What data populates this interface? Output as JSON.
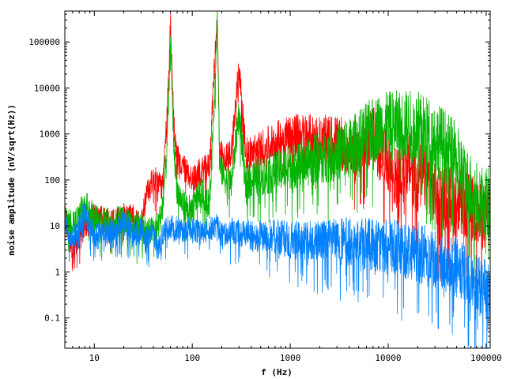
{
  "chart_data": {
    "type": "line",
    "title": "",
    "xlabel": "f (Hz)",
    "ylabel": "noise amplitude (nV/sqrt(Hz))",
    "xscale": "log",
    "yscale": "log",
    "xlim": [
      5,
      110000
    ],
    "ylim": [
      0.022,
      470000
    ],
    "grid": false,
    "legend": "none",
    "x_ticks": [
      {
        "value": 10,
        "label": "10"
      },
      {
        "value": 100,
        "label": "100"
      },
      {
        "value": 1000,
        "label": "1000"
      },
      {
        "value": 10000,
        "label": "10000"
      },
      {
        "value": 100000,
        "label": "100000"
      }
    ],
    "y_ticks": [
      {
        "value": 0.1,
        "label": "0.1"
      },
      {
        "value": 1,
        "label": "1"
      },
      {
        "value": 10,
        "label": "10"
      },
      {
        "value": 100,
        "label": "100"
      },
      {
        "value": 1000,
        "label": "1000"
      },
      {
        "value": 10000,
        "label": "10000"
      },
      {
        "value": 100000,
        "label": "100000"
      }
    ],
    "series": [
      {
        "color": "#ff0000",
        "x": [
          5,
          6,
          8,
          10,
          15,
          20,
          25,
          30,
          35,
          40,
          45,
          50,
          55,
          58,
          60,
          62,
          65,
          70,
          80,
          100,
          120,
          150,
          170,
          180,
          190,
          220,
          250,
          300,
          350,
          400,
          500,
          700,
          1000,
          1500,
          2000,
          3000,
          4000,
          5000,
          6000,
          7000,
          8000,
          10000,
          12000,
          15000,
          18000,
          20000,
          22000,
          25000,
          30000,
          40000,
          50000,
          60000,
          70000,
          80000,
          100000,
          110000
        ],
        "y": [
          18,
          3,
          10,
          15,
          12,
          18,
          15,
          10,
          60,
          100,
          90,
          70,
          2000,
          30000,
          400000,
          30000,
          1500,
          300,
          200,
          100,
          150,
          200,
          50000,
          350000,
          400,
          300,
          400,
          30000,
          400,
          400,
          500,
          700,
          1000,
          900,
          800,
          700,
          500,
          500,
          600,
          1200,
          500,
          250,
          100,
          250,
          180,
          90,
          130,
          100,
          50,
          40,
          30,
          30,
          25,
          20,
          15,
          20
        ]
      },
      {
        "color": "#00b400",
        "x": [
          5,
          6,
          8,
          10,
          15,
          20,
          25,
          30,
          35,
          40,
          45,
          50,
          55,
          58,
          60,
          62,
          65,
          70,
          80,
          100,
          120,
          150,
          170,
          180,
          190,
          220,
          250,
          300,
          350,
          400,
          500,
          700,
          1000,
          1500,
          2000,
          3000,
          4000,
          5000,
          6000,
          7000,
          8000,
          10000,
          12000,
          15000,
          18000,
          20000,
          22000,
          25000,
          30000,
          40000,
          50000,
          60000,
          70000,
          80000,
          100000,
          110000
        ],
        "y": [
          15,
          10,
          30,
          15,
          10,
          15,
          8,
          12,
          7,
          8,
          10,
          30,
          500,
          10000,
          200000,
          10000,
          500,
          60,
          30,
          20,
          60,
          30,
          10000,
          400000,
          200,
          100,
          80,
          3000,
          80,
          100,
          120,
          150,
          200,
          250,
          300,
          400,
          500,
          700,
          1000,
          1200,
          1400,
          1500,
          1550,
          1500,
          1400,
          1300,
          1200,
          1000,
          800,
          500,
          250,
          100,
          60,
          40,
          30,
          25
        ]
      },
      {
        "color": "#0080ff",
        "x": [
          5,
          6,
          8,
          10,
          15,
          20,
          25,
          30,
          35,
          40,
          45,
          50,
          55,
          58,
          60,
          62,
          65,
          70,
          80,
          100,
          120,
          150,
          170,
          180,
          190,
          220,
          250,
          300,
          350,
          400,
          500,
          700,
          1000,
          1500,
          2000,
          3000,
          4000,
          5000,
          6000,
          7000,
          8000,
          10000,
          12000,
          15000,
          18000,
          20000,
          22000,
          25000,
          30000,
          40000,
          50000,
          60000,
          70000,
          80000,
          100000,
          110000
        ],
        "y": [
          12,
          5,
          20,
          6,
          8,
          12,
          6,
          9,
          5,
          8,
          3,
          7,
          10,
          8,
          9,
          12,
          7,
          10,
          8,
          9,
          7,
          8,
          10,
          15,
          7,
          6,
          8,
          7,
          7,
          6,
          6,
          6,
          5,
          5,
          5,
          4.5,
          4.5,
          4,
          4,
          4,
          3.8,
          3.5,
          3.3,
          3,
          3,
          2.8,
          2.5,
          2.3,
          2,
          1.5,
          1.2,
          0.8,
          0.6,
          0.5,
          0.4,
          0.4
        ]
      }
    ]
  }
}
